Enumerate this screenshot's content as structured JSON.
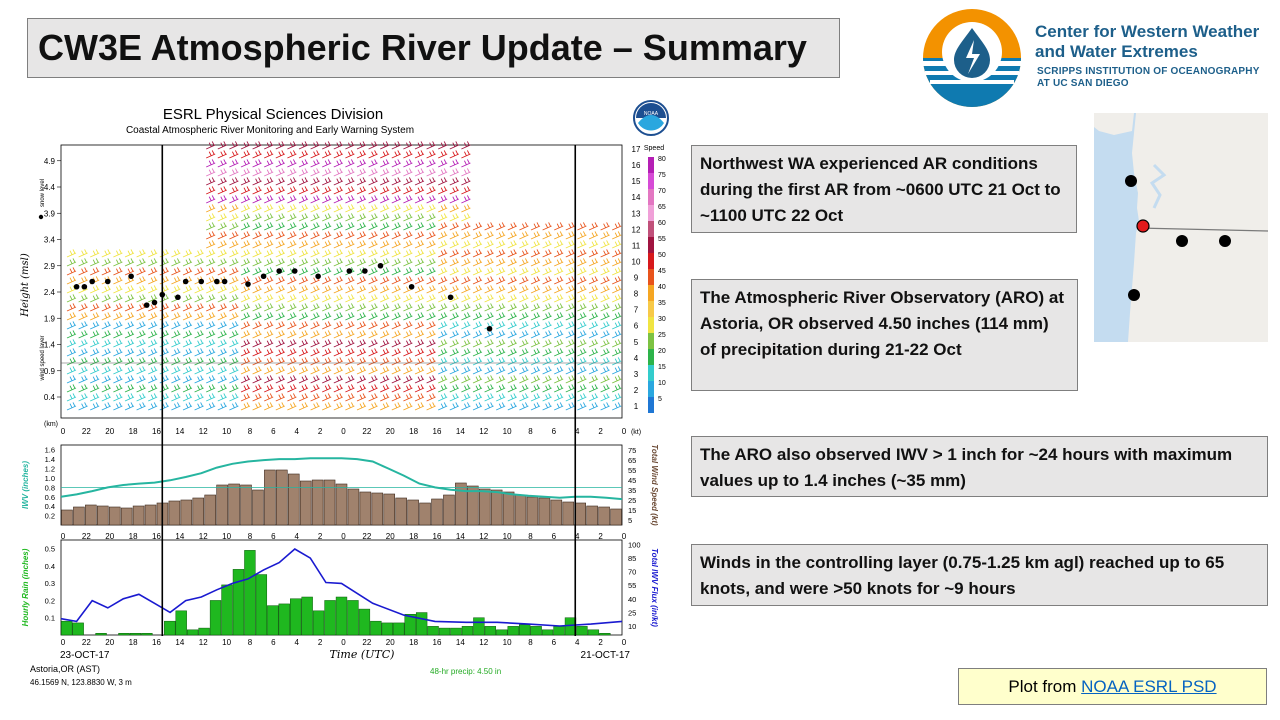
{
  "title": "CW3E Atmospheric River Update – Summary",
  "logo": {
    "line1": "Center for Western Weather",
    "line2": "and Water Extremes",
    "line3": "SCRIPPS INSTITUTION OF OCEANOGRAPHY",
    "line4": "AT UC SAN DIEGO"
  },
  "notes": [
    "Northwest WA experienced AR conditions during the first AR from ~0600 UTC 21 Oct to ~1100 UTC 22 Oct",
    "The Atmospheric River Observatory (ARO) at Astoria, OR observed 4.50 inches (114 mm) of precipitation during 21-22 Oct",
    "The ARO also observed IWV > 1 inch for ~24 hours with maximum values up to 1.4 inches (~35 mm)",
    "Winds in the controlling layer (0.75-1.25 km agl) reached up to 65 knots, and were >50 knots for ~9 hours"
  ],
  "plot_credit": {
    "prefix": "Plot from ",
    "link": "NOAA ESRL PSD"
  },
  "chart_data": {
    "type": "composite",
    "title": "ESRL Physical Sciences Division",
    "subtitle": "Coastal Atmospheric River Monitoring and Early Warning System",
    "station": "Astoria,OR (AST)",
    "coords": "46.1569 N, 123.8830 W, 3 m",
    "precip_total": "48-hr precip:  4.50 in",
    "xlabel": "Time (UTC)",
    "date_left": "23-OCT-17",
    "date_right": "21-OCT-17",
    "time_ticks": [
      "0",
      "22",
      "20",
      "18",
      "16",
      "14",
      "12",
      "10",
      "8",
      "6",
      "4",
      "2",
      "0",
      "22",
      "20",
      "18",
      "16",
      "14",
      "12",
      "10",
      "8",
      "6",
      "4",
      "2",
      "0"
    ],
    "wind_profile": {
      "ylabel": "Height (msl)",
      "yunit": "(km)",
      "y_ticks": [
        "0.4",
        "0.9",
        "1.4",
        "1.9",
        "2.4",
        "2.9",
        "3.4",
        "3.9",
        "4.4",
        "4.9"
      ],
      "right_ticks": [
        "1",
        "2",
        "3",
        "4",
        "5",
        "6",
        "7",
        "8",
        "9",
        "10",
        "11",
        "12",
        "13",
        "14",
        "15",
        "16",
        "17"
      ],
      "right_unit": "(kt)",
      "colorbar_title": "Speed",
      "colorbar_ticks": [
        "80",
        "75",
        "70",
        "65",
        "60",
        "55",
        "50",
        "45",
        "40",
        "35",
        "30",
        "25",
        "20",
        "15",
        "10",
        "5"
      ],
      "snow_label": "snow level",
      "wind_layer_label": "wind speed layer",
      "snow_level_hours": [
        17,
        22,
        27,
        31,
        33,
        35,
        39,
        42,
        44,
        46,
        48,
        51,
        52,
        54,
        56,
        57,
        59,
        60,
        61,
        63,
        66,
        68,
        69,
        70
      ],
      "snow_level_km": [
        1.7,
        2.3,
        2.5,
        2.9,
        2.8,
        2.8,
        2.7,
        2.8,
        2.8,
        2.7,
        2.55,
        2.6,
        2.6,
        2.6,
        2.6,
        2.3,
        2.35,
        2.2,
        2.15,
        2.7,
        2.6,
        2.6,
        2.5,
        2.5
      ]
    },
    "iwv_panel": {
      "ylabel_left": "IWV (inches)",
      "ylabel_right": "Total Wind Speed (kt)",
      "left_ticks": [
        0.2,
        0.4,
        0.6,
        0.8,
        1.0,
        1.2,
        1.4,
        1.6
      ],
      "right_ticks": [
        5,
        15,
        25,
        35,
        45,
        55,
        65,
        75
      ],
      "threshold_inches": 0.8,
      "iwv_inches": [
        0.55,
        0.58,
        0.6,
        0.6,
        0.58,
        0.6,
        0.62,
        0.65,
        0.7,
        0.72,
        0.72,
        0.75,
        0.8,
        0.88,
        1.05,
        1.2,
        1.35,
        1.4,
        1.42,
        1.42,
        1.42,
        1.4,
        1.4,
        1.38,
        1.35,
        1.3,
        1.22,
        1.1,
        1.02,
        0.95,
        0.9,
        0.88,
        0.85,
        0.8,
        0.72,
        0.65,
        0.6
      ],
      "wind_kt": [
        15,
        18,
        20,
        19,
        18,
        17,
        19,
        20,
        22,
        24,
        25,
        27,
        30,
        40,
        41,
        40,
        35,
        55,
        55,
        51,
        44,
        45,
        45,
        41,
        36,
        33,
        32,
        31,
        27,
        25,
        22,
        26,
        30,
        42,
        39,
        36,
        35,
        33,
        30,
        28,
        27,
        25,
        23,
        22,
        19,
        18,
        16
      ],
      "iwv_hours": [
        0,
        2,
        4,
        6,
        8,
        10,
        12,
        14,
        16,
        18,
        20,
        22,
        24,
        26,
        28,
        30,
        32,
        34,
        36,
        38,
        40,
        42,
        44,
        46,
        48,
        50,
        52,
        54,
        56,
        58,
        60,
        62,
        64,
        66,
        68,
        70,
        72
      ]
    },
    "rain_panel": {
      "ylabel_left": "Hourly Rain (inches)",
      "ylabel_right": "Total IWV Flux (in/kt)",
      "left_ticks": [
        0.1,
        0.2,
        0.3,
        0.4,
        0.5
      ],
      "right_ticks": [
        10,
        25,
        40,
        55,
        70,
        85,
        100
      ],
      "rain_inches": [
        0,
        0.01,
        0.03,
        0.05,
        0.1,
        0.05,
        0.03,
        0.05,
        0.06,
        0.05,
        0.03,
        0.05,
        0.1,
        0.05,
        0.04,
        0.04,
        0.05,
        0.13,
        0.12,
        0.07,
        0.07,
        0.08,
        0.15,
        0.2,
        0.22,
        0.2,
        0.14,
        0.22,
        0.21,
        0.18,
        0.17,
        0.35,
        0.49,
        0.38,
        0.29,
        0.2,
        0.04,
        0.03,
        0.14,
        0.08,
        0,
        0.01,
        0.01,
        0.01,
        0,
        0.01,
        0,
        0.07,
        0.08
      ],
      "flux_hours": [
        0,
        4,
        8,
        12,
        16,
        20,
        24,
        28,
        32,
        36,
        38,
        40,
        42,
        44,
        46,
        48,
        50,
        52,
        54,
        56,
        58,
        60,
        62,
        64,
        66,
        68,
        70,
        72
      ],
      "flux": [
        15,
        12,
        10,
        12,
        14,
        14,
        15,
        22,
        35,
        57,
        58,
        85,
        95,
        80,
        72,
        62,
        57,
        50,
        42,
        38,
        25,
        35,
        45,
        40,
        30,
        38,
        15,
        18
      ]
    }
  }
}
